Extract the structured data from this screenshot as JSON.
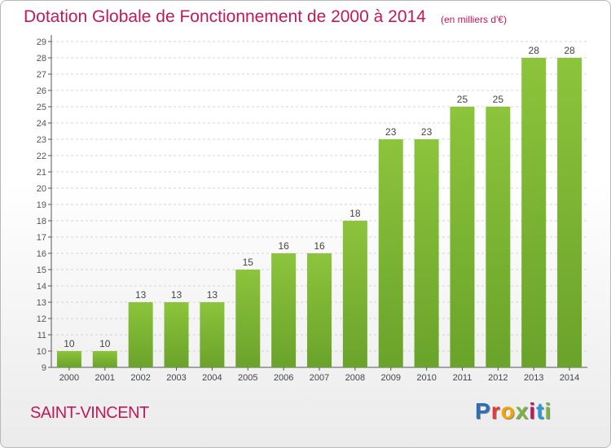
{
  "header": {
    "title": "Dotation Globale de Fonctionnement de 2000 à 2014",
    "unit": "(en milliers d'€)"
  },
  "footer": {
    "commune": "SAINT-VINCENT",
    "logo_letters": [
      "P",
      "r",
      "o",
      "x",
      "i",
      "t",
      "i"
    ],
    "logo_colors": [
      "#2b6fb6",
      "#e53935",
      "#f6a500",
      "#7cb342",
      "#c2185b",
      "#2b9ad6",
      "#7cb342"
    ]
  },
  "chart_data": {
    "type": "bar",
    "categories": [
      "2000",
      "2001",
      "2002",
      "2003",
      "2004",
      "2005",
      "2006",
      "2007",
      "2008",
      "2009",
      "2010",
      "2011",
      "2012",
      "2013",
      "2014"
    ],
    "values": [
      10,
      10,
      13,
      13,
      13,
      15,
      16,
      16,
      18,
      23,
      23,
      25,
      25,
      28,
      28
    ],
    "title": "Dotation Globale de Fonctionnement de 2000 à 2014",
    "ylim": [
      9,
      29
    ],
    "yticks": [
      9,
      10,
      11,
      12,
      13,
      14,
      15,
      16,
      17,
      18,
      19,
      20,
      21,
      22,
      23,
      24,
      25,
      26,
      27,
      28,
      29
    ],
    "grid": true,
    "bar_color": "#8cc43c",
    "bar_color_dark": "#6aa32a"
  }
}
